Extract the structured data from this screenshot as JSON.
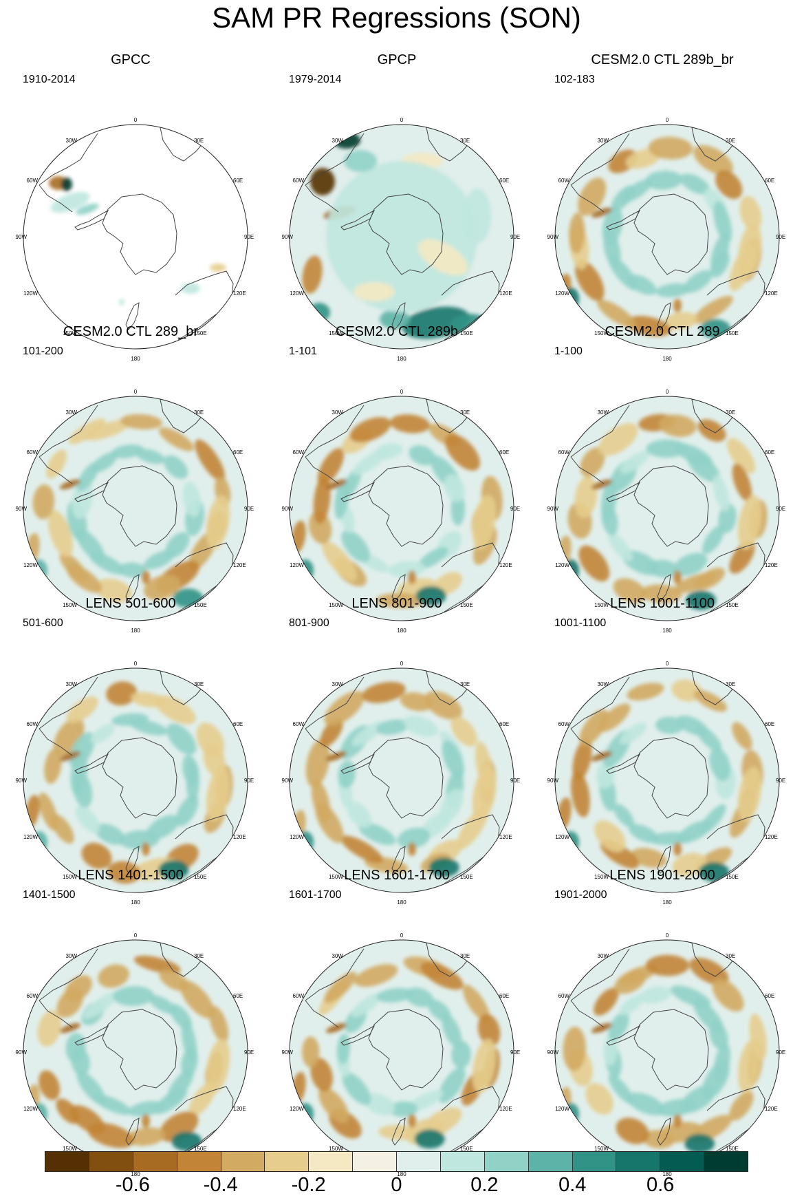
{
  "title": "SAM PR Regressions (SON)",
  "panels": [
    {
      "title": "GPCC",
      "years": "1910-2014",
      "kind": "obs_gpcc"
    },
    {
      "title": "GPCP",
      "years": "1979-2014",
      "kind": "obs_gpcp"
    },
    {
      "title": "CESM2.0 CTL 289b_br",
      "years": "102-183",
      "kind": "model"
    },
    {
      "title": "CESM2.0 CTL 289_br",
      "years": "101-200",
      "kind": "model"
    },
    {
      "title": "CESM2.0 CTL 289b",
      "years": "1-101",
      "kind": "model"
    },
    {
      "title": "CESM2.0 CTL 289",
      "years": "1-100",
      "kind": "model"
    },
    {
      "title": "LENS 501-600",
      "years": "501-600",
      "kind": "model"
    },
    {
      "title": "LENS 801-900",
      "years": "801-900",
      "kind": "model"
    },
    {
      "title": "LENS 1001-1100",
      "years": "1001-1100",
      "kind": "model"
    },
    {
      "title": "LENS 1401-1500",
      "years": "1401-1500",
      "kind": "model"
    },
    {
      "title": "LENS 1601-1700",
      "years": "1601-1700",
      "kind": "model"
    },
    {
      "title": "LENS 1901-2000",
      "years": "1901-2000",
      "kind": "model"
    }
  ],
  "longitude_labels": [
    "0",
    "30E",
    "60E",
    "90E",
    "120E",
    "150E",
    "180",
    "150W",
    "120W",
    "90W",
    "60W",
    "30W"
  ],
  "colorbar": {
    "colors": [
      "#553005",
      "#814f10",
      "#a76b22",
      "#c28536",
      "#d2aa62",
      "#e6cd8e",
      "#f4e9c2",
      "#f4f0e4",
      "#e1efec",
      "#bfe7df",
      "#90d2c6",
      "#5db3a7",
      "#319286",
      "#16766b",
      "#045b51",
      "#003c2f"
    ],
    "tick_labels": [
      "-0.6",
      "-0.4",
      "-0.2",
      "0",
      "0.2",
      "0.4",
      "0.6"
    ],
    "tick_values": [
      -0.6,
      -0.4,
      -0.2,
      0,
      0.2,
      0.4,
      0.6
    ],
    "range": [
      -0.8,
      0.8
    ],
    "interval": 0.1
  }
}
